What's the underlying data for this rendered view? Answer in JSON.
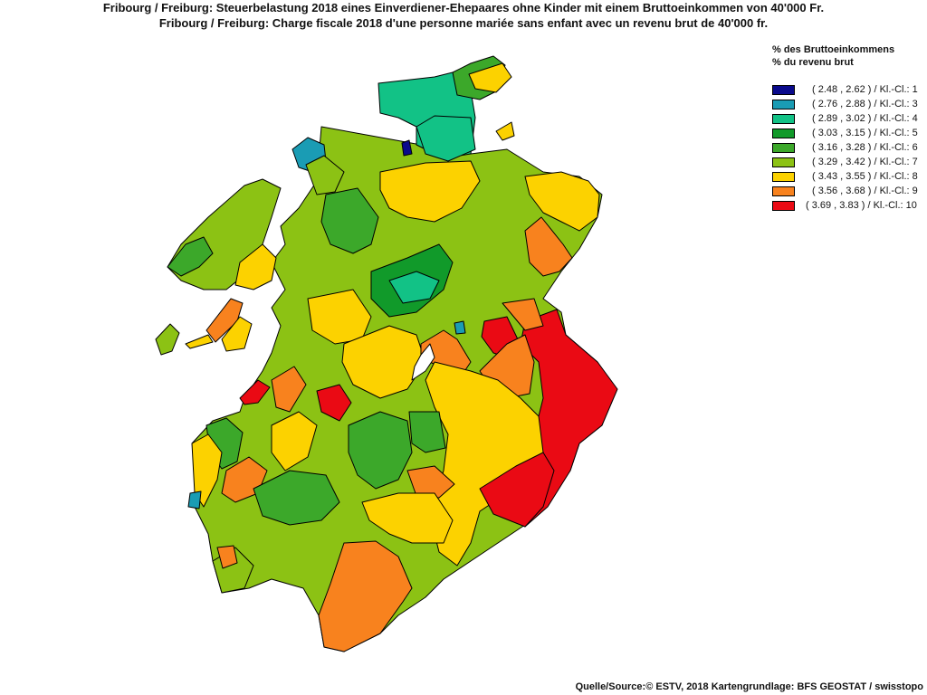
{
  "title_de": "Fribourg / Freiburg: Steuerbelastung 2018 eines Einverdiener-Ehepaares ohne Kinder mit einem Bruttoeinkommen von 40'000 Fr.",
  "title_fr": "Fribourg / Freiburg: Charge fiscale 2018 d'une personne mariée sans enfant avec un revenu brut de 40'000 fr.",
  "legend": {
    "heading_de": "% des Bruttoeinkommens",
    "heading_fr": "% du revenu brut",
    "items": [
      {
        "label": "( 2.48 , 2.62 ) / Kl.-Cl.: 1",
        "color": "#0a0a8c"
      },
      {
        "label": "( 2.76 , 2.88 ) / Kl.-Cl.: 3",
        "color": "#1a9cb4"
      },
      {
        "label": "( 2.89 , 3.02 ) / Kl.-Cl.: 4",
        "color": "#12c286"
      },
      {
        "label": "( 3.03 , 3.15 ) / Kl.-Cl.: 5",
        "color": "#119a2a"
      },
      {
        "label": "( 3.16 , 3.28 ) / Kl.-Cl.: 6",
        "color": "#3ca82a"
      },
      {
        "label": "( 3.29 , 3.42 ) / Kl.-Cl.: 7",
        "color": "#8cc214"
      },
      {
        "label": "( 3.43 , 3.55 ) / Kl.-Cl.: 8",
        "color": "#fcd200"
      },
      {
        "label": "( 3.56 , 3.68 ) / Kl.-Cl.: 9",
        "color": "#f8821e"
      },
      {
        "label": "( 3.69 , 3.83 ) / Kl.-Cl.: 10",
        "color": "#ea0a14"
      }
    ]
  },
  "source": "Quelle/Source:© ESTV, 2018 Kartengrundlage: BFS GEOSTAT / swisstopo"
}
